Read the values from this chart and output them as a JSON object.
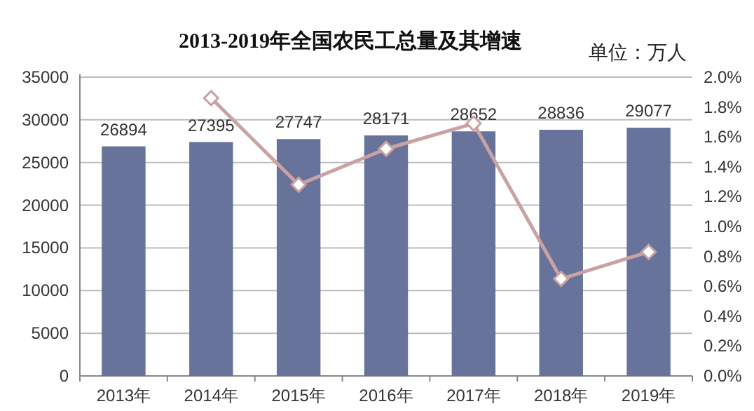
{
  "chart_data": {
    "type": "bar",
    "title": "2013-2019年全国农民工总量及其增速",
    "annotations": [
      "单位：万人"
    ],
    "categories": [
      "2013年",
      "2014年",
      "2015年",
      "2016年",
      "2017年",
      "2018年",
      "2019年"
    ],
    "series": [
      {
        "color": "#67739b",
        "values": [
          26894,
          27395,
          27747,
          28171,
          28652,
          28836,
          29077
        ],
        "value_labels": [
          "26894",
          "27395",
          "27747",
          "28171",
          "28652",
          "28836",
          "29077"
        ]
      },
      {
        "type": "line",
        "axis": "y2",
        "color": "#c9a3a3",
        "marker": "diamond",
        "values": [
          null,
          1.86,
          1.28,
          1.52,
          1.69,
          0.65,
          0.83
        ]
      }
    ],
    "ylim": [
      0,
      35000
    ],
    "yticks": [
      0,
      5000,
      10000,
      15000,
      20000,
      25000,
      30000,
      35000
    ],
    "y2lim": [
      0,
      2
    ],
    "y2ticks": [
      {
        "value": 0,
        "label": "0.0%"
      },
      {
        "value": 0.2,
        "label": "0.2%"
      },
      {
        "value": 0.4,
        "label": "0.4%"
      },
      {
        "value": 0.6,
        "label": "0.6%"
      },
      {
        "value": 0.8,
        "label": "0.8%"
      },
      {
        "value": 1,
        "label": "1.0%"
      },
      {
        "value": 1.2,
        "label": "1.2%"
      },
      {
        "value": 1.4,
        "label": "1.4%"
      },
      {
        "value": 1.6,
        "label": "1.6%"
      },
      {
        "value": 1.8,
        "label": "1.8%"
      },
      {
        "value": 2,
        "label": "2.0%"
      }
    ],
    "grid": "y"
  }
}
